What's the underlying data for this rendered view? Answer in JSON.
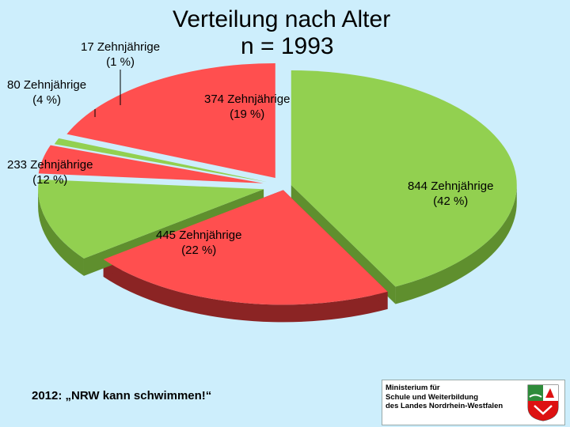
{
  "chart_data": {
    "type": "pie",
    "title": "Verteilung nach Alter",
    "subtitle": "n = 1993",
    "slices": [
      {
        "label": "844 Zehnjährige",
        "pct": "(42 %)",
        "value": 844,
        "color": "#92d050"
      },
      {
        "label": "445 Zehnjährige",
        "pct": "(22 %)",
        "value": 445,
        "color": "#ff4f4f"
      },
      {
        "label": "233 Zehnjährige",
        "pct": "(12 %)",
        "value": 233,
        "color": "#92d050"
      },
      {
        "label": "80 Zehnjährige",
        "pct": "(4 %)",
        "value": 80,
        "color": "#ff4f4f"
      },
      {
        "label": "17 Zehnjährige",
        "pct": "(1 %)",
        "value": 17,
        "color": "#92d050"
      },
      {
        "label": "374 Zehnjährige",
        "pct": "(19 %)",
        "value": 374,
        "color": "#ff4f4f"
      }
    ],
    "colors": {
      "green": "#92d050",
      "green_side": "#5f8f2e",
      "red": "#ff4f4f",
      "red_side": "#8b2424",
      "background": "#cdeefc"
    }
  },
  "footer": "2012: „NRW kann schwimmen!“",
  "logo": {
    "text": "Ministerium für\nSchule und Weiterbildung\ndes Landes Nordrhein-Westfalen",
    "icon": "nrw-coat-of-arms-icon"
  }
}
